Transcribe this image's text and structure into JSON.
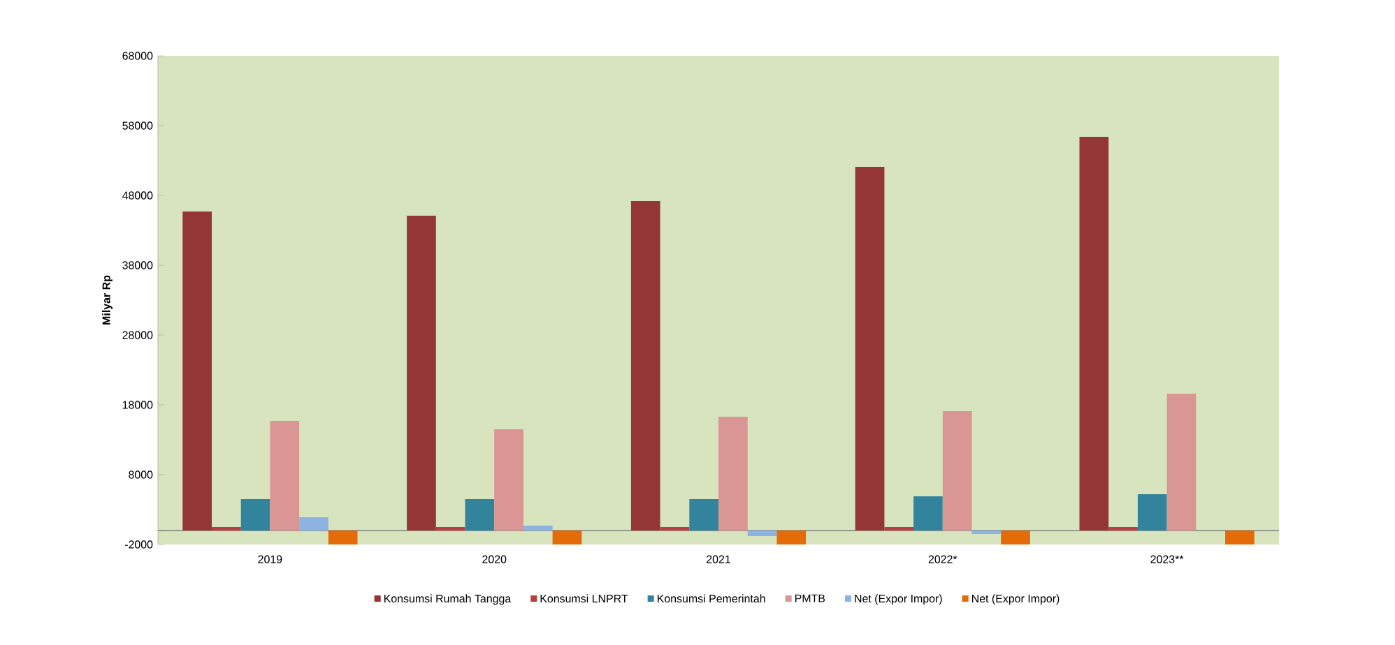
{
  "chart_data": {
    "type": "bar",
    "ylabel": "Milyar Rp",
    "categories": [
      "2019",
      "2020",
      "2021",
      "2022*",
      "2023**"
    ],
    "series": [
      {
        "name": "Konsumsi Rumah Tangga",
        "color": "#943634",
        "values": [
          45700,
          45100,
          47200,
          52100,
          56400
        ]
      },
      {
        "name": "Konsumsi LNPRT",
        "color": "#b5403d",
        "values": [
          500,
          500,
          500,
          500,
          500
        ]
      },
      {
        "name": "Konsumsi Pemerintah",
        "color": "#31849b",
        "values": [
          4500,
          4500,
          4500,
          4900,
          5200
        ]
      },
      {
        "name": "PMTB",
        "color": "#d99694",
        "values": [
          15700,
          14500,
          16300,
          17100,
          19600
        ]
      },
      {
        "name": "Net (Expor Impor)",
        "color": "#8db3e2",
        "values": [
          1900,
          700,
          -800,
          -500,
          null
        ]
      },
      {
        "name": "Net (Expor Impor)",
        "color": "#e36c09",
        "values": [
          -2000,
          -2000,
          -2000,
          -2000,
          -2000
        ]
      }
    ],
    "ylim": [
      -2000,
      68000
    ],
    "yticks": [
      -2000,
      8000,
      18000,
      28000,
      38000,
      48000,
      58000,
      68000
    ],
    "legend": "bottom"
  }
}
